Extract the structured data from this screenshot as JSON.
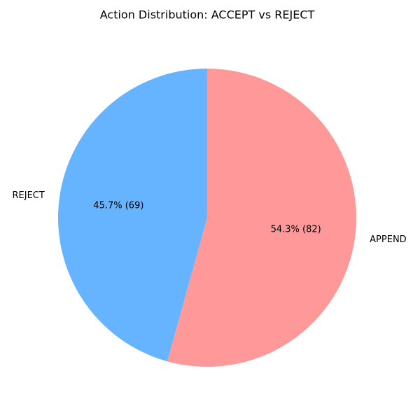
{
  "chart_data": {
    "type": "pie",
    "title": "Action Distribution: ACCEPT vs REJECT",
    "categories": [
      "REJECT",
      "APPEND"
    ],
    "values": [
      69,
      82
    ],
    "value_labels": [
      "45.7% (69)",
      "54.3% (82)"
    ],
    "colors": [
      "#66b3ff",
      "#ff9999"
    ]
  }
}
